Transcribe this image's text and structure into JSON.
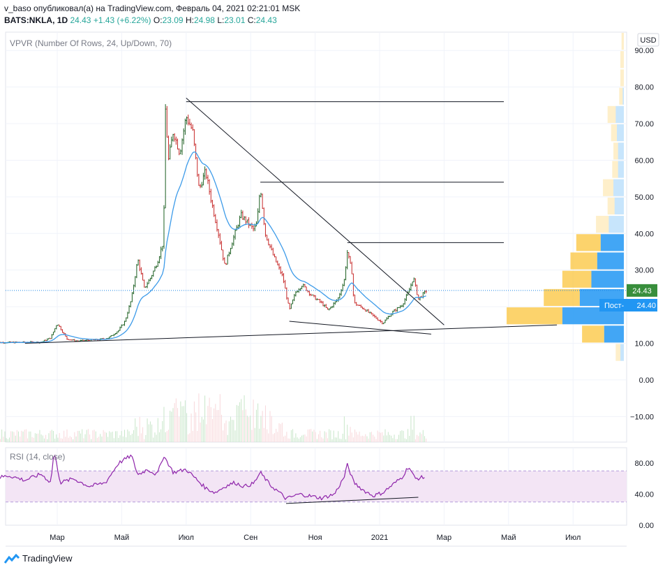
{
  "header": {
    "publisher_line": "v_baso опубликовал(а) на TradingView.com, Февраль 04, 2021 02:21:01 MSK",
    "symbol": "BATS:NKLA, 1D",
    "last": "24.43",
    "change": "+1.43 (+6.22%)",
    "o_label": "O:",
    "o_value": "23.09",
    "h_label": "H:",
    "h_value": "24.98",
    "l_label": "L:",
    "l_value": "23.01",
    "c_label": "C:",
    "c_value": "24.43"
  },
  "panes": {
    "vpvr_label": "VPVR (Number Of Rows, 24, Up/Down, 70)",
    "rsi_label": "RSI (14, close)",
    "currency_button": "USD",
    "last_price_tag": "24.43",
    "poc_label": "Пост-",
    "poc_value": "24.40"
  },
  "footer": {
    "brand": "TradingView"
  },
  "colors": {
    "up": "#26a69a",
    "up_candle": "#1b5e20",
    "down_candle": "#c62828",
    "ema": "#3d9be9",
    "rsi_line": "#8e24aa",
    "rsi_band": "#f3e5f5",
    "vp_up": "#2196f3",
    "vp_down": "#fbc02d",
    "last_tag": "#388e3c",
    "poc_tag": "#2196f3"
  },
  "chart_data": [
    {
      "type": "candlestick",
      "title": "BATS:NKLA, 1D",
      "ylim": [
        -17,
        95
      ],
      "y_ticks": [
        -10,
        0,
        10,
        20,
        30,
        40,
        50,
        60,
        70,
        80,
        90
      ],
      "y_tick_labels": [
        "−10.00",
        "0.00",
        "10.00",
        "20.00",
        "30.00",
        "40.00",
        "50.00",
        "60.00",
        "70.00",
        "80.00",
        "90.00"
      ],
      "x_tick_labels": [
        "Мар",
        "Май",
        "Июл",
        "Сен",
        "Ноя",
        "2021",
        "Мар",
        "Май",
        "Июл"
      ],
      "x_tick_months": [
        2,
        4,
        6,
        8,
        10,
        12,
        14,
        16,
        18
      ],
      "price_path": [
        [
          0,
          10.2
        ],
        [
          1.5,
          10.3
        ],
        [
          1.8,
          11.5
        ],
        [
          2.0,
          15.5
        ],
        [
          2.3,
          11.2
        ],
        [
          2.6,
          10.6
        ],
        [
          3.3,
          11.0
        ],
        [
          3.6,
          11.5
        ],
        [
          3.9,
          13.5
        ],
        [
          4.1,
          16.0
        ],
        [
          4.3,
          22.0
        ],
        [
          4.5,
          33.0
        ],
        [
          4.7,
          25.0
        ],
        [
          4.9,
          28.0
        ],
        [
          5.1,
          32.0
        ],
        [
          5.3,
          38.0
        ],
        [
          5.35,
          75.0
        ],
        [
          5.45,
          60.0
        ],
        [
          5.6,
          68.0
        ],
        [
          5.8,
          62.0
        ],
        [
          6.0,
          72.0
        ],
        [
          6.2,
          68.0
        ],
        [
          6.4,
          52.0
        ],
        [
          6.6,
          57.0
        ],
        [
          6.8,
          48.0
        ],
        [
          7.0,
          40.0
        ],
        [
          7.2,
          31.0
        ],
        [
          7.4,
          37.0
        ],
        [
          7.7,
          45.0
        ],
        [
          7.9,
          43.0
        ],
        [
          8.1,
          41.0
        ],
        [
          8.2,
          43.0
        ],
        [
          8.3,
          53.0
        ],
        [
          8.45,
          40.0
        ],
        [
          8.7,
          34.0
        ],
        [
          9.0,
          28.0
        ],
        [
          9.2,
          19.0
        ],
        [
          9.4,
          24.0
        ],
        [
          9.6,
          26.0
        ],
        [
          9.9,
          23.0
        ],
        [
          10.2,
          21.0
        ],
        [
          10.4,
          19.0
        ],
        [
          10.7,
          22.0
        ],
        [
          10.9,
          27.0
        ],
        [
          11.0,
          35.0
        ],
        [
          11.15,
          29.0
        ],
        [
          11.2,
          21.0
        ],
        [
          11.5,
          19.5
        ],
        [
          11.8,
          17.5
        ],
        [
          12.1,
          15.5
        ],
        [
          12.4,
          18.5
        ],
        [
          12.7,
          20.5
        ],
        [
          12.9,
          24.0
        ],
        [
          13.05,
          28.0
        ],
        [
          13.2,
          22.0
        ],
        [
          13.45,
          24.4
        ]
      ],
      "volume_profile": {
        "row_height": 5,
        "rows": [
          {
            "price": 92.5,
            "up": 0,
            "down": 2
          },
          {
            "price": 87.5,
            "up": 0,
            "down": 3
          },
          {
            "price": 82.5,
            "up": 0,
            "down": 3
          },
          {
            "price": 77.5,
            "up": 1,
            "down": 3
          },
          {
            "price": 72.5,
            "up": 7,
            "down": 7
          },
          {
            "price": 67.5,
            "up": 6,
            "down": 5
          },
          {
            "price": 62.5,
            "up": 5,
            "down": 4
          },
          {
            "price": 57.5,
            "up": 5,
            "down": 5
          },
          {
            "price": 52.5,
            "up": 9,
            "down": 9
          },
          {
            "price": 47.5,
            "up": 8,
            "down": 6
          },
          {
            "price": 42.5,
            "up": 13,
            "down": 11
          },
          {
            "price": 37.5,
            "up": 20,
            "down": 21
          },
          {
            "price": 32.5,
            "up": 23,
            "down": 23
          },
          {
            "price": 27.5,
            "up": 28,
            "down": 25
          },
          {
            "price": 22.5,
            "up": 38,
            "down": 31
          },
          {
            "price": 17.5,
            "up": 53,
            "down": 48
          },
          {
            "price": 12.5,
            "up": 17,
            "down": 19
          },
          {
            "price": 7.5,
            "up": 3,
            "down": 4
          }
        ]
      },
      "drawings": {
        "horizontal_levels": [
          76,
          54,
          37.5
        ],
        "downtrend": [
          [
            6.0,
            77
          ],
          [
            14.0,
            15
          ]
        ],
        "support_line": [
          [
            1.0,
            10.0
          ],
          [
            17.5,
            15.0
          ]
        ],
        "lower_channel": [
          [
            9.2,
            16.0
          ],
          [
            13.6,
            12.5
          ]
        ]
      }
    },
    {
      "type": "line",
      "title": "RSI (14, close)",
      "ylim": [
        0,
        100
      ],
      "y_ticks": [
        0,
        40,
        80
      ],
      "y_tick_labels": [
        "0.00",
        "40.00",
        "80.00"
      ],
      "band": [
        30,
        70
      ],
      "rsi_path": [
        [
          0,
          60
        ],
        [
          0.5,
          64
        ],
        [
          1.0,
          58
        ],
        [
          1.5,
          66
        ],
        [
          1.8,
          55
        ],
        [
          1.9,
          95
        ],
        [
          2.1,
          55
        ],
        [
          2.5,
          60
        ],
        [
          3.0,
          50
        ],
        [
          3.5,
          55
        ],
        [
          3.9,
          80
        ],
        [
          4.3,
          90
        ],
        [
          4.5,
          65
        ],
        [
          4.8,
          72
        ],
        [
          5.1,
          65
        ],
        [
          5.3,
          90
        ],
        [
          5.6,
          68
        ],
        [
          6.0,
          72
        ],
        [
          6.3,
          60
        ],
        [
          6.6,
          48
        ],
        [
          6.9,
          42
        ],
        [
          7.2,
          50
        ],
        [
          7.5,
          55
        ],
        [
          7.8,
          50
        ],
        [
          8.1,
          54
        ],
        [
          8.3,
          68
        ],
        [
          8.6,
          52
        ],
        [
          8.9,
          42
        ],
        [
          9.1,
          34
        ],
        [
          9.5,
          40
        ],
        [
          9.8,
          38
        ],
        [
          10.2,
          35
        ],
        [
          10.6,
          40
        ],
        [
          10.9,
          62
        ],
        [
          11.0,
          78
        ],
        [
          11.2,
          55
        ],
        [
          11.5,
          45
        ],
        [
          11.8,
          38
        ],
        [
          12.1,
          42
        ],
        [
          12.4,
          52
        ],
        [
          12.7,
          62
        ],
        [
          12.9,
          76
        ],
        [
          13.1,
          60
        ],
        [
          13.4,
          62
        ]
      ],
      "divergence_line": [
        [
          9.1,
          28
        ],
        [
          13.2,
          36
        ]
      ]
    }
  ]
}
